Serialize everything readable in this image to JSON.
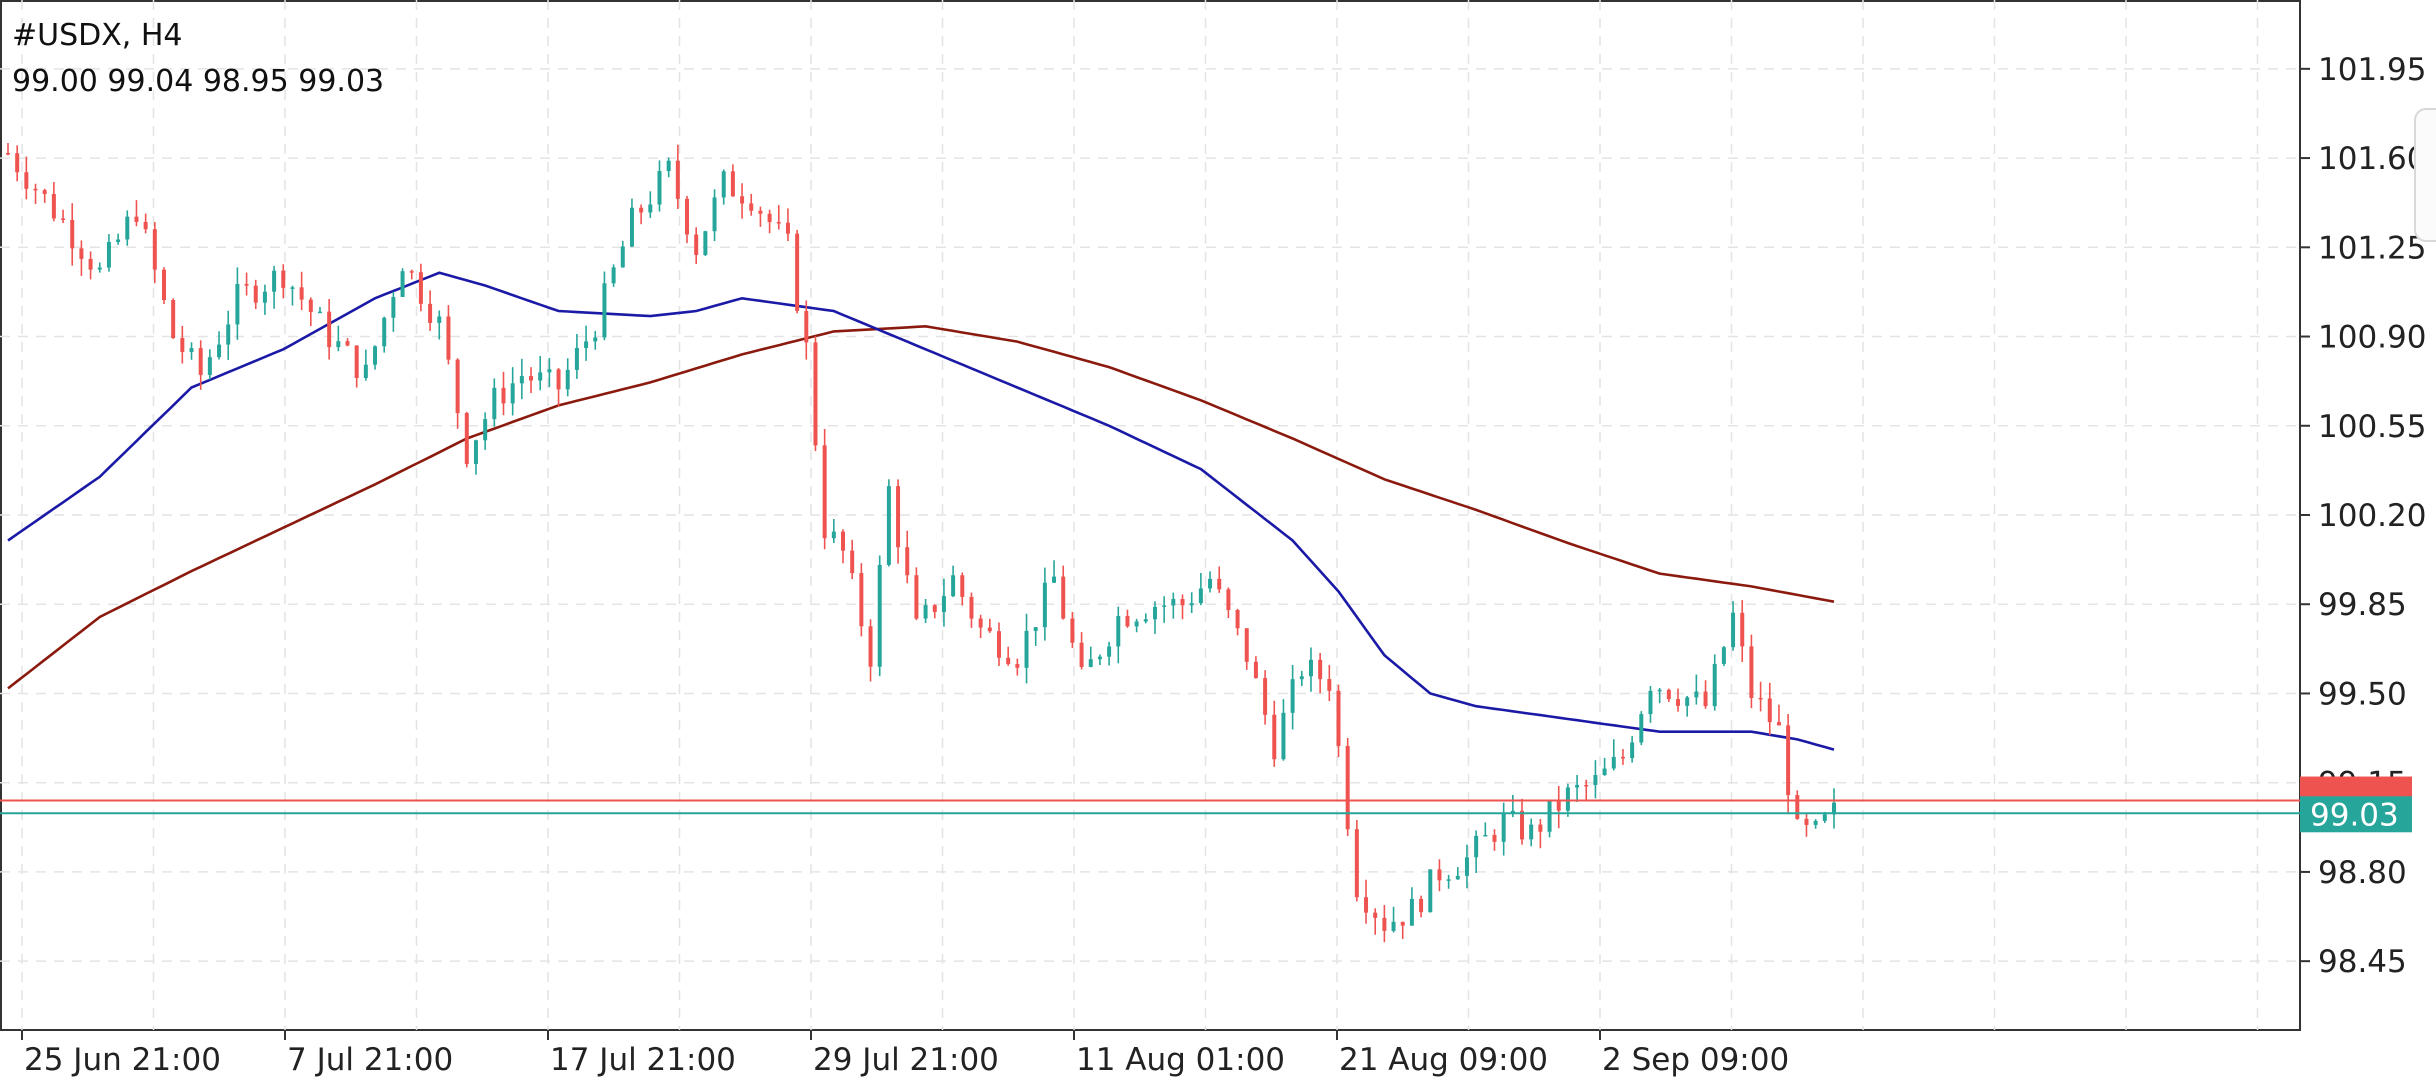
{
  "header": {
    "symbol_timeframe": "#USDX, H4",
    "ohlc": "99.00 99.04 98.95 99.03"
  },
  "chart_data": {
    "type": "candlestick",
    "symbol": "#USDX",
    "timeframe": "H4",
    "x_tick_labels": [
      "25 Jun 21:00",
      "7 Jul 21:00",
      "17 Jul 21:00",
      "29 Jul 21:00",
      "11 Aug 01:00",
      "21 Aug 09:00",
      "2 Sep 09:00"
    ],
    "y_tick_labels": [
      "101.95",
      "101.60",
      "101.25",
      "100.90",
      "100.55",
      "100.20",
      "99.85",
      "99.50",
      "99.15",
      "98.80",
      "98.45"
    ],
    "ylim": [
      98.18,
      102.22
    ],
    "grid": true,
    "current_price": "99.03",
    "current_price_color": "#26a69a",
    "ask_price_line": 99.08,
    "ask_price_color": "#ef5350",
    "colors": {
      "up_candle": "#26a69a",
      "down_candle": "#ef5350",
      "ma_fast": "#1a1aa6",
      "ma_slow": "#8b1a0e",
      "grid": "#e4e4e4",
      "axis": "#333333"
    },
    "candle_anchors": [
      [
        0,
        101.62
      ],
      [
        6,
        101.35
      ],
      [
        10,
        101.15
      ],
      [
        14,
        101.4
      ],
      [
        18,
        100.9
      ],
      [
        21,
        100.75
      ],
      [
        25,
        101.05
      ],
      [
        30,
        101.15
      ],
      [
        35,
        100.9
      ],
      [
        39,
        100.75
      ],
      [
        43,
        101.2
      ],
      [
        47,
        100.95
      ],
      [
        50,
        100.45
      ],
      [
        53,
        100.65
      ],
      [
        56,
        100.75
      ],
      [
        60,
        100.7
      ],
      [
        64,
        100.95
      ],
      [
        68,
        101.35
      ],
      [
        72,
        101.55
      ],
      [
        75,
        101.25
      ],
      [
        78,
        101.5
      ],
      [
        81,
        101.45
      ],
      [
        85,
        101.25
      ],
      [
        87,
        100.85
      ],
      [
        89,
        100.15
      ],
      [
        91,
        100.05
      ],
      [
        94,
        99.65
      ],
      [
        96,
        100.3
      ],
      [
        99,
        99.75
      ],
      [
        103,
        99.95
      ],
      [
        106,
        99.75
      ],
      [
        110,
        99.65
      ],
      [
        114,
        99.95
      ],
      [
        117,
        99.55
      ],
      [
        121,
        99.8
      ],
      [
        125,
        99.85
      ],
      [
        128,
        99.85
      ],
      [
        131,
        99.95
      ],
      [
        135,
        99.65
      ],
      [
        138,
        99.3
      ],
      [
        141,
        99.6
      ],
      [
        144,
        99.55
      ],
      [
        147,
        98.75
      ],
      [
        150,
        98.6
      ],
      [
        153,
        98.65
      ],
      [
        156,
        98.8
      ],
      [
        159,
        98.85
      ],
      [
        163,
        99.0
      ],
      [
        166,
        98.95
      ],
      [
        170,
        99.1
      ],
      [
        173,
        99.15
      ],
      [
        176,
        99.25
      ],
      [
        179,
        99.55
      ],
      [
        182,
        99.5
      ],
      [
        185,
        99.45
      ],
      [
        188,
        99.8
      ],
      [
        190,
        99.5
      ],
      [
        193,
        99.35
      ],
      [
        195,
        98.95
      ],
      [
        197,
        98.95
      ],
      [
        199,
        99.03
      ]
    ],
    "ma_fast_anchors": [
      [
        0,
        100.1
      ],
      [
        10,
        100.35
      ],
      [
        20,
        100.7
      ],
      [
        30,
        100.85
      ],
      [
        40,
        101.05
      ],
      [
        47,
        101.15
      ],
      [
        52,
        101.1
      ],
      [
        60,
        101.0
      ],
      [
        70,
        100.98
      ],
      [
        75,
        101.0
      ],
      [
        80,
        101.05
      ],
      [
        90,
        101.0
      ],
      [
        100,
        100.85
      ],
      [
        110,
        100.7
      ],
      [
        120,
        100.55
      ],
      [
        130,
        100.38
      ],
      [
        140,
        100.1
      ],
      [
        145,
        99.9
      ],
      [
        150,
        99.65
      ],
      [
        155,
        99.5
      ],
      [
        160,
        99.45
      ],
      [
        170,
        99.4
      ],
      [
        180,
        99.35
      ],
      [
        190,
        99.35
      ],
      [
        195,
        99.32
      ],
      [
        199,
        99.28
      ]
    ],
    "ma_slow_anchors": [
      [
        0,
        99.52
      ],
      [
        10,
        99.8
      ],
      [
        20,
        99.98
      ],
      [
        30,
        100.15
      ],
      [
        40,
        100.32
      ],
      [
        50,
        100.5
      ],
      [
        60,
        100.63
      ],
      [
        70,
        100.72
      ],
      [
        80,
        100.83
      ],
      [
        90,
        100.92
      ],
      [
        100,
        100.94
      ],
      [
        110,
        100.88
      ],
      [
        120,
        100.78
      ],
      [
        130,
        100.65
      ],
      [
        140,
        100.5
      ],
      [
        150,
        100.34
      ],
      [
        160,
        100.22
      ],
      [
        170,
        100.09
      ],
      [
        180,
        99.97
      ],
      [
        190,
        99.92
      ],
      [
        199,
        99.86
      ]
    ],
    "candle_count": 200
  }
}
